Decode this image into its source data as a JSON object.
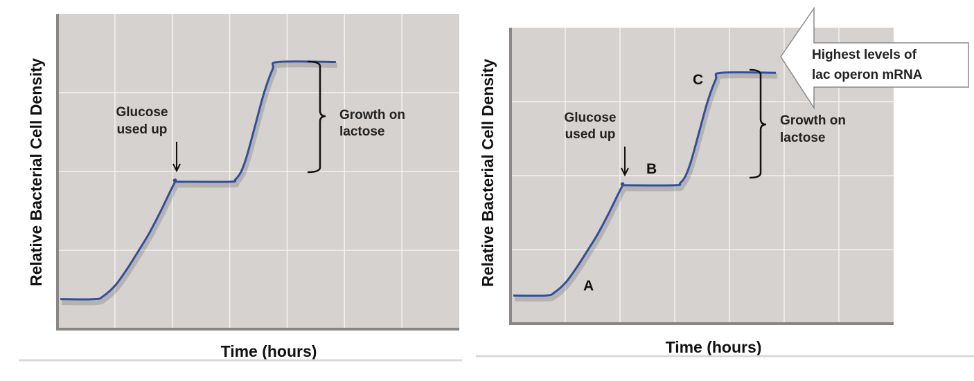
{
  "chart_data": [
    {
      "type": "line",
      "xlabel": "Time (hours)",
      "ylabel": "Relative Bacterial Cell Density",
      "xlim": [
        0,
        7
      ],
      "ylim": [
        0,
        4
      ],
      "grid": true,
      "series": [
        {
          "x": [
            0.05,
            0.65,
            0.8,
            1.0,
            1.2,
            1.4,
            1.6,
            1.8,
            2.05,
            2.1,
            3.0,
            3.1,
            3.2,
            3.3,
            3.45,
            3.6,
            3.75,
            3.85,
            4.85
          ],
          "y": [
            0.38,
            0.38,
            0.42,
            0.55,
            0.75,
            0.98,
            1.22,
            1.5,
            1.87,
            1.87,
            1.87,
            1.9,
            2.0,
            2.2,
            2.6,
            3.0,
            3.3,
            3.39,
            3.39
          ]
        }
      ],
      "annotations": {
        "glucose": [
          "Glucose",
          "used up"
        ],
        "growth": [
          "Growth on",
          "lactose"
        ]
      }
    },
    {
      "type": "line",
      "xlabel": "Time (hours)",
      "ylabel": "Relative Bacterial Cell Density",
      "xlim": [
        0,
        7
      ],
      "ylim": [
        0,
        4
      ],
      "grid": true,
      "series": [
        {
          "x": [
            0.05,
            0.65,
            0.8,
            1.0,
            1.2,
            1.4,
            1.6,
            1.8,
            2.05,
            2.1,
            3.0,
            3.1,
            3.2,
            3.3,
            3.45,
            3.6,
            3.75,
            3.85,
            4.85
          ],
          "y": [
            0.38,
            0.38,
            0.42,
            0.55,
            0.75,
            0.98,
            1.22,
            1.5,
            1.87,
            1.87,
            1.87,
            1.9,
            2.0,
            2.2,
            2.6,
            3.0,
            3.3,
            3.39,
            3.39
          ]
        }
      ],
      "annotations": {
        "glucose": [
          "Glucose",
          "used up"
        ],
        "growth": [
          "Growth on",
          "lactose"
        ],
        "letters": [
          "A",
          "B",
          "C"
        ],
        "callout": [
          "Highest levels of",
          "lac operon mRNA"
        ]
      }
    }
  ],
  "colors": {
    "plot_bg": "#d6d2cf",
    "grid": "#f4f2f0",
    "axis": "#8b8684",
    "curve": "#2f4f9f"
  }
}
